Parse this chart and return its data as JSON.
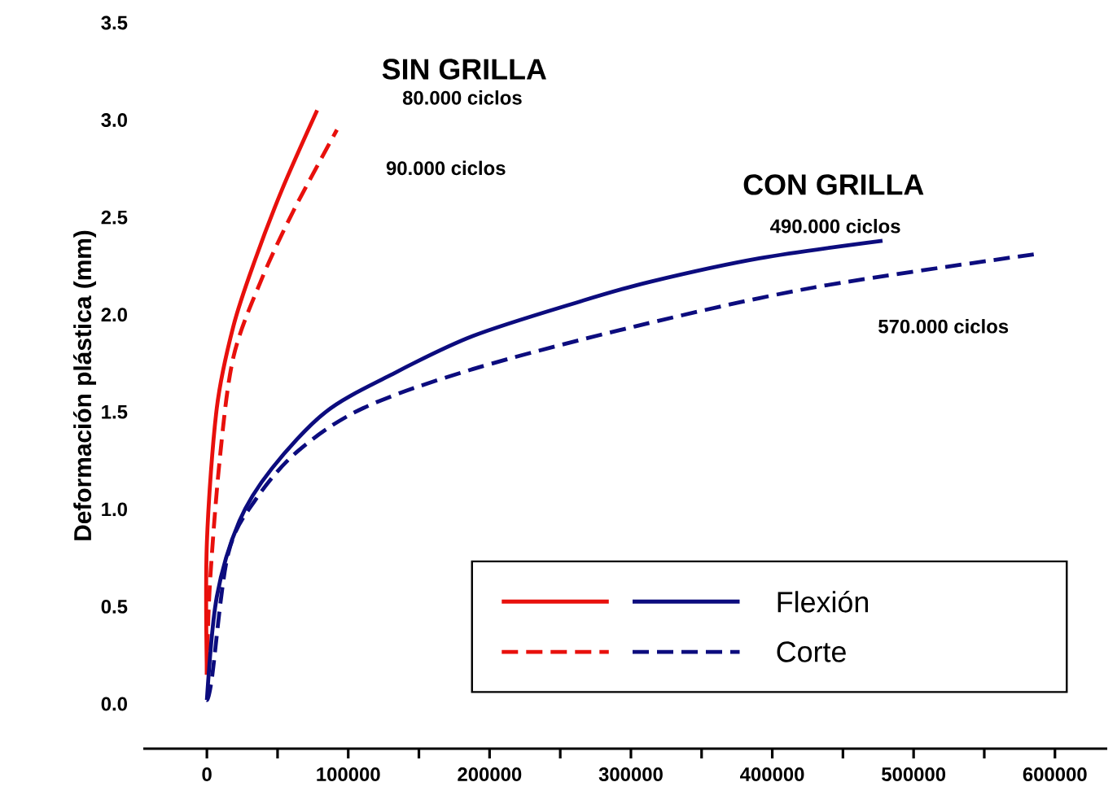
{
  "chart_data": {
    "type": "line",
    "ylabel": "Deformación plástica (mm)",
    "xlim": [
      -45000,
      637000
    ],
    "ylim": [
      -0.23,
      3.5
    ],
    "xticks": [
      0,
      100000,
      200000,
      300000,
      400000,
      500000,
      600000
    ],
    "yticks": [
      {
        "value": 0,
        "label": "0.0"
      },
      {
        "value": 0.5,
        "label": "0.5"
      },
      {
        "value": 1,
        "label": "1.0"
      },
      {
        "value": 1.5,
        "label": "1.5"
      },
      {
        "value": 2,
        "label": "2.0"
      },
      {
        "value": 2.5,
        "label": "2.5"
      },
      {
        "value": 3,
        "label": "3.0"
      },
      {
        "value": 3.5,
        "label": "3.5"
      }
    ],
    "legend": "bottom right",
    "series": [
      {
        "color": "#e8100c",
        "line_style": "solid",
        "x": [
          0,
          0,
          7000,
          18700,
          34000,
          53000,
          78000
        ],
        "values": [
          0.15,
          0.83,
          1.52,
          1.94,
          2.28,
          2.64,
          3.05
        ]
      },
      {
        "color": "#e8100c",
        "line_style": "dashed",
        "x": [
          0,
          2000,
          9000,
          18700,
          38000,
          61000,
          92000
        ],
        "values": [
          0.15,
          0.6,
          1.25,
          1.78,
          2.17,
          2.53,
          2.95
        ]
      },
      {
        "name": "Flexión",
        "color": "#0c0c7e",
        "line_style": "solid",
        "x": [
          0,
          7000,
          23000,
          46000,
          84000,
          130000,
          188000,
          265000,
          314000,
          391000,
          478000
        ],
        "values": [
          0.02,
          0.55,
          0.94,
          1.21,
          1.5,
          1.69,
          1.89,
          2.07,
          2.17,
          2.29,
          2.38
        ]
      },
      {
        "name": "Corte",
        "color": "#0c0c7e",
        "line_style": "dashed",
        "x": [
          0,
          3500,
          15000,
          34500,
          64500,
          110600,
          188000,
          303000,
          429500,
          585000
        ],
        "values": [
          0.02,
          0.13,
          0.77,
          1.05,
          1.3,
          1.52,
          1.72,
          1.94,
          2.14,
          2.31
        ]
      }
    ],
    "annotations": [
      "SIN GRILLA",
      "80.000 ciclos",
      "90.000 ciclos",
      "CON GRILLA",
      "490.000 ciclos",
      "570.000 ciclos"
    ]
  }
}
